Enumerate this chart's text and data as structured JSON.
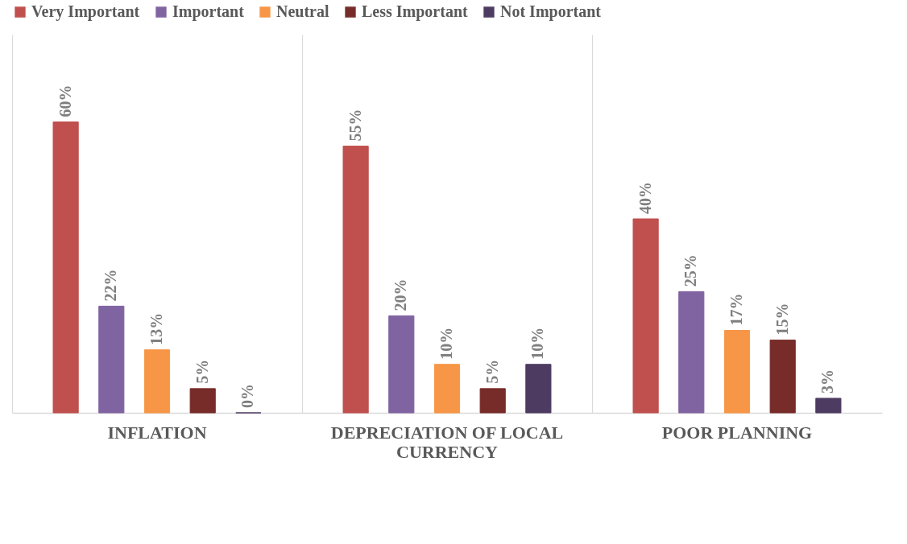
{
  "chart_data": {
    "type": "bar",
    "categories": [
      "INFLATION",
      "DEPRECIATION OF LOCAL CURRENCY",
      "POOR PLANNING"
    ],
    "series": [
      {
        "name": "Very Important",
        "color": "#c0504d",
        "values": [
          60,
          55,
          40
        ],
        "value_labels": [
          "60%",
          "55%",
          "40%"
        ]
      },
      {
        "name": "Important",
        "color": "#8064a2",
        "values": [
          22,
          20,
          25
        ],
        "value_labels": [
          "22%",
          "20%",
          "25%"
        ]
      },
      {
        "name": "Neutral",
        "color": "#f79646",
        "values": [
          13,
          10,
          17
        ],
        "value_labels": [
          "13%",
          "10%",
          "17%"
        ]
      },
      {
        "name": "Less Important",
        "color": "#772c2a",
        "values": [
          5,
          5,
          15
        ],
        "value_labels": [
          "5%",
          "5%",
          "15%"
        ]
      },
      {
        "name": "Not Important",
        "color": "#4d3b62",
        "values": [
          0,
          10,
          3
        ],
        "value_labels": [
          "0%",
          "10%",
          "3%"
        ]
      }
    ],
    "legend": "top",
    "grid": "x"
  }
}
